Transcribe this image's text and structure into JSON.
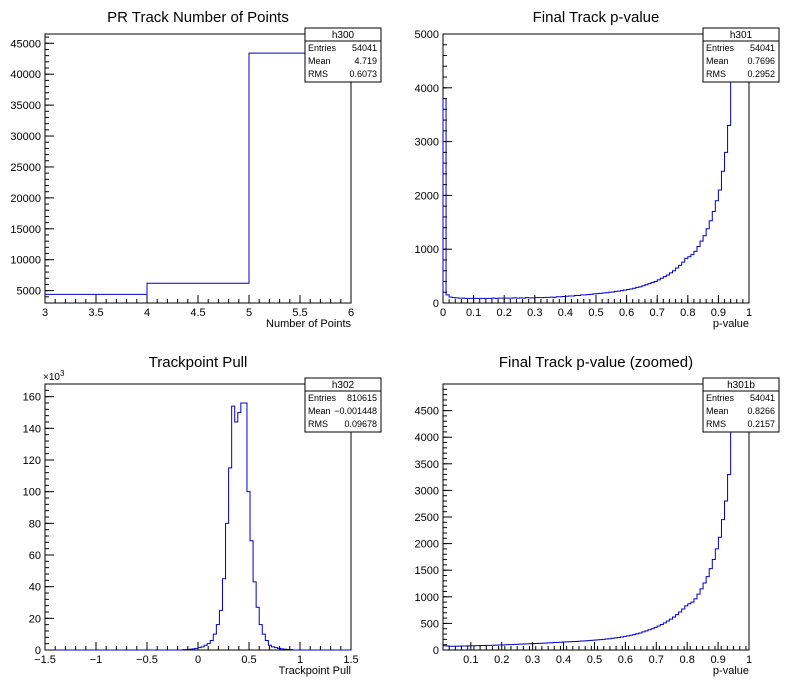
{
  "colors": {
    "line": "#0000cc",
    "axis": "#000000",
    "background": "#ffffff"
  },
  "chart_data": [
    {
      "type": "histogram",
      "title": "PR Track Number of Points",
      "xlabel": "Number of Points",
      "ylabel": "",
      "xlim": [
        3,
        6
      ],
      "ylim": [
        3000,
        46500
      ],
      "xticks": [
        "3",
        "3.5",
        "4",
        "4.5",
        "5",
        "5.5",
        "6"
      ],
      "yticks": [
        "5000",
        "10000",
        "15000",
        "20000",
        "25000",
        "30000",
        "35000",
        "40000",
        "45000"
      ],
      "ytick_values": [
        5000,
        10000,
        15000,
        20000,
        25000,
        30000,
        35000,
        40000,
        45000
      ],
      "yexponent": "",
      "bin_edges": [
        3,
        4,
        5,
        6
      ],
      "counts": [
        4400,
        6200,
        43400
      ],
      "stats": {
        "name": "h300",
        "entries_label": "Entries",
        "entries": "54041",
        "mean_label": "Mean",
        "mean": "4.719",
        "rms_label": "RMS",
        "rms": "0.6073"
      }
    },
    {
      "type": "histogram",
      "title": "Final Track p-value",
      "xlabel": "p-value",
      "ylabel": "",
      "xlim": [
        0,
        1
      ],
      "ylim": [
        0,
        5000
      ],
      "xticks": [
        "0",
        "0.1",
        "0.2",
        "0.3",
        "0.4",
        "0.5",
        "0.6",
        "0.7",
        "0.8",
        "0.9",
        "1"
      ],
      "yticks": [
        "0",
        "1000",
        "2000",
        "3000",
        "4000",
        "5000"
      ],
      "ytick_values": [
        0,
        1000,
        2000,
        3000,
        4000,
        5000
      ],
      "yexponent": "",
      "bin_range": [
        0,
        1
      ],
      "counts": [
        3800,
        150,
        110,
        100,
        95,
        90,
        90,
        85,
        85,
        85,
        85,
        85,
        85,
        85,
        85,
        85,
        90,
        85,
        90,
        90,
        90,
        90,
        90,
        95,
        90,
        95,
        90,
        100,
        95,
        95,
        100,
        100,
        100,
        105,
        105,
        110,
        105,
        115,
        115,
        120,
        125,
        130,
        130,
        140,
        140,
        150,
        150,
        155,
        160,
        170,
        175,
        180,
        185,
        190,
        200,
        205,
        215,
        220,
        230,
        240,
        250,
        260,
        275,
        290,
        300,
        320,
        340,
        360,
        380,
        400,
        430,
        460,
        490,
        520,
        560,
        600,
        650,
        700,
        760,
        830,
        860,
        900,
        960,
        1050,
        1150,
        1250,
        1380,
        1530,
        1700,
        1900,
        2100,
        2450,
        2800,
        3300,
        4200,
        4800,
        4950,
        5000,
        4900,
        4600
      ],
      "stats": {
        "name": "h301",
        "entries_label": "Entries",
        "entries": "54041",
        "mean_label": "Mean",
        "mean": "0.7696",
        "rms_label": "RMS",
        "rms": "0.2952"
      }
    },
    {
      "type": "histogram",
      "title": "Trackpoint Pull",
      "xlabel": "Trackpoint Pull",
      "ylabel": "",
      "xlim": [
        -1.5,
        1.5
      ],
      "ylim": [
        0,
        168
      ],
      "xticks": [
        "−1.5",
        "−1",
        "−0.5",
        "0",
        "0.5",
        "1",
        "1.5"
      ],
      "yticks": [
        "0",
        "20",
        "40",
        "60",
        "80",
        "100",
        "120",
        "140",
        "160"
      ],
      "ytick_values": [
        0,
        20,
        40,
        60,
        80,
        100,
        120,
        140,
        160
      ],
      "yexponent": "×10",
      "yexponent_power": "3",
      "yunit_scale": 1000,
      "bin_range": [
        -1.5,
        1.5
      ],
      "counts": [
        0,
        0,
        0,
        0,
        0,
        0,
        0,
        0,
        0,
        0,
        0,
        0,
        0,
        0,
        0,
        0,
        0,
        0,
        0,
        0,
        0,
        0,
        0,
        0,
        0,
        0,
        0,
        0,
        0,
        0,
        0,
        0,
        0,
        0,
        0,
        0,
        0,
        0,
        0,
        0,
        0,
        0,
        0,
        0,
        0,
        0.2,
        0.3,
        0.5,
        0.7,
        1,
        1.5,
        2,
        3,
        4,
        6,
        10,
        16,
        25,
        45,
        80,
        115,
        154,
        144,
        150,
        156,
        156,
        100,
        69,
        43,
        27,
        16,
        10,
        6,
        3,
        2,
        1.5,
        1,
        0.7,
        0.5,
        0.3,
        0.2,
        0,
        0,
        0,
        0,
        0,
        0,
        0,
        0,
        0,
        0,
        0,
        0,
        0,
        0,
        0,
        0,
        0,
        0,
        0
      ],
      "stats": {
        "name": "h302",
        "entries_label": "Entries",
        "entries": "810615",
        "mean_label": "Mean",
        "mean": "−0.001448",
        "rms_label": "RMS",
        "rms": "0.09678"
      }
    },
    {
      "type": "histogram",
      "title": "Final Track p-value (zoomed)",
      "xlabel": "p-value",
      "ylabel": "",
      "xlim": [
        0.01,
        1
      ],
      "ylim": [
        0,
        5000
      ],
      "xticks": [
        "0.1",
        "0.2",
        "0.3",
        "0.4",
        "0.5",
        "0.6",
        "0.7",
        "0.8",
        "0.9",
        "1"
      ],
      "xtick_values": [
        0.1,
        0.2,
        0.3,
        0.4,
        0.5,
        0.6,
        0.7,
        0.8,
        0.9,
        1
      ],
      "yticks": [
        "0",
        "500",
        "1000",
        "1500",
        "2000",
        "2500",
        "3000",
        "3500",
        "4000",
        "4500"
      ],
      "ytick_values": [
        0,
        500,
        1000,
        1500,
        2000,
        2500,
        3000,
        3500,
        4000,
        4500
      ],
      "yexponent": "",
      "bin_range": [
        0.01,
        1
      ],
      "counts": [
        80,
        75,
        70,
        70,
        70,
        72,
        75,
        75,
        78,
        80,
        80,
        82,
        85,
        85,
        88,
        88,
        90,
        92,
        95,
        95,
        98,
        100,
        100,
        105,
        108,
        110,
        112,
        115,
        118,
        120,
        122,
        125,
        128,
        130,
        133,
        136,
        140,
        143,
        146,
        150,
        152,
        155,
        158,
        160,
        165,
        168,
        172,
        176,
        180,
        185,
        190,
        195,
        200,
        206,
        212,
        220,
        228,
        236,
        245,
        255,
        265,
        277,
        290,
        305,
        320,
        340,
        360,
        380,
        400,
        425,
        450,
        480,
        510,
        545,
        580,
        620,
        665,
        715,
        770,
        830,
        870,
        900,
        960,
        1050,
        1150,
        1260,
        1380,
        1530,
        1700,
        1900,
        2120,
        2450,
        2800,
        3300,
        4100,
        4700,
        4900,
        4950,
        4900,
        4600
      ],
      "stats": {
        "name": "h301b",
        "entries_label": "Entries",
        "entries": "54041",
        "mean_label": "Mean",
        "mean": "0.8266",
        "rms_label": "RMS",
        "rms": "0.2157"
      }
    }
  ]
}
